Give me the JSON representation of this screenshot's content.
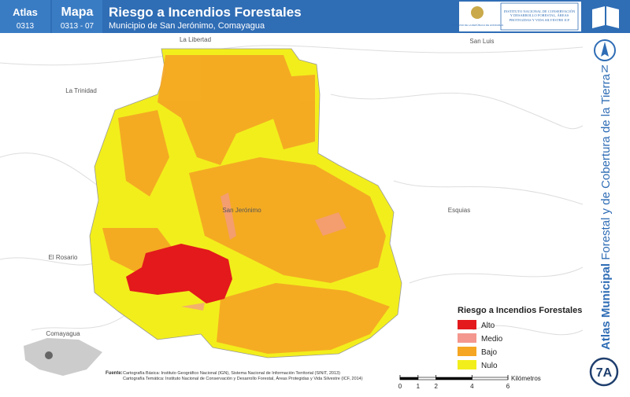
{
  "header": {
    "atlas_label": "Atlas",
    "atlas_code": "0313",
    "map_label": "Mapa",
    "map_code": "0313 - 07",
    "title": "Riesgo a Incendios Forestales",
    "subtitle": "Municipio de San Jerónimo, Comayagua",
    "logo_left": "GOBIERNO DE LA REPÚBLICA DE HONDURAS",
    "logo_right": "INSTITUTO NACIONAL DE CONSERVACIÓN Y DESARROLLO FORESTAL, ÁREAS PROTEGIDAS Y VIDA SILVESTRE ICF"
  },
  "places": [
    "La Libertad",
    "San Luis",
    "La Trinidad",
    "San Jerónimo",
    "Esquias",
    "El Rosario",
    "Comayagua"
  ],
  "north": "N",
  "side_title": {
    "bold": "Atlas Municipal",
    "rest": "Forestal y de Cobertura de la Tierra"
  },
  "badge": "7A",
  "legend": {
    "title": "Riesgo a Incendios Forestales",
    "items": [
      {
        "label": "Alto",
        "color": "#e3191c"
      },
      {
        "label": "Medio",
        "color": "#f4978e"
      },
      {
        "label": "Bajo",
        "color": "#f5a623"
      },
      {
        "label": "Nulo",
        "color": "#f2ee1c"
      }
    ]
  },
  "scale_bar": {
    "ticks": [
      0,
      1,
      2,
      4,
      6
    ],
    "unit": "Kilómetros"
  },
  "source": {
    "label": "Fuente:",
    "lines": [
      "Cartografía Básica: Instituto Geográfico Nacional (IGN), Sistema Nacional de Información Territorial (SINIT, 2013)",
      "Cartografía Temática: Instituto Nacional de Conservación y Desarrollo Forestal, Áreas Protegidas y Vida Silvestre (ICF, 2014)"
    ]
  }
}
